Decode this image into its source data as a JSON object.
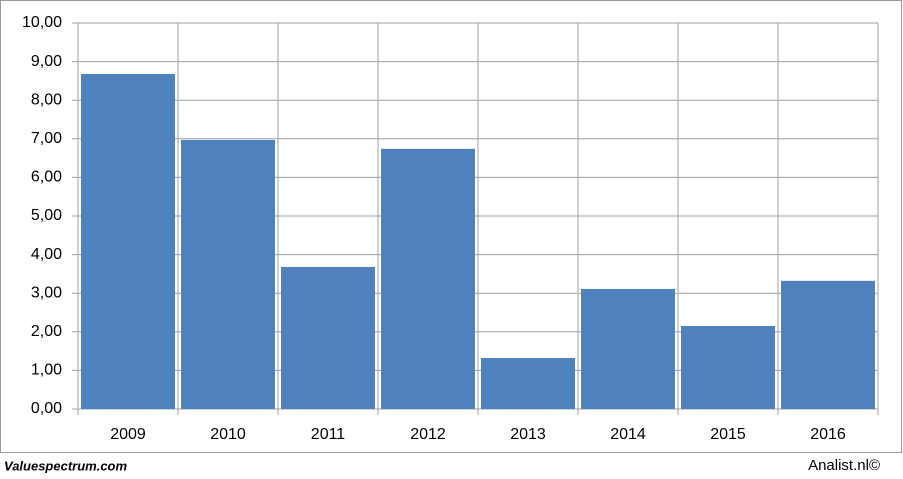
{
  "chart_data": {
    "type": "bar",
    "categories": [
      "2009",
      "2010",
      "2011",
      "2012",
      "2013",
      "2014",
      "2015",
      "2016"
    ],
    "values": [
      8.68,
      6.97,
      3.68,
      6.74,
      1.32,
      3.11,
      2.15,
      3.32
    ],
    "color": "#4f81bd",
    "ylim": [
      0,
      10
    ],
    "yticks": [
      {
        "value": 0,
        "label": "0,00"
      },
      {
        "value": 1,
        "label": "1,00"
      },
      {
        "value": 2,
        "label": "2,00"
      },
      {
        "value": 3,
        "label": "3,00"
      },
      {
        "value": 4,
        "label": "4,00"
      },
      {
        "value": 5,
        "label": "5,00"
      },
      {
        "value": 6,
        "label": "6,00"
      },
      {
        "value": 7,
        "label": "7,00"
      },
      {
        "value": 8,
        "label": "8,00"
      },
      {
        "value": 9,
        "label": "9,00"
      },
      {
        "value": 10,
        "label": "10,00"
      }
    ],
    "grid": true
  },
  "footer": {
    "left": "Valuespectrum.com",
    "right": "Analist.nl©"
  }
}
